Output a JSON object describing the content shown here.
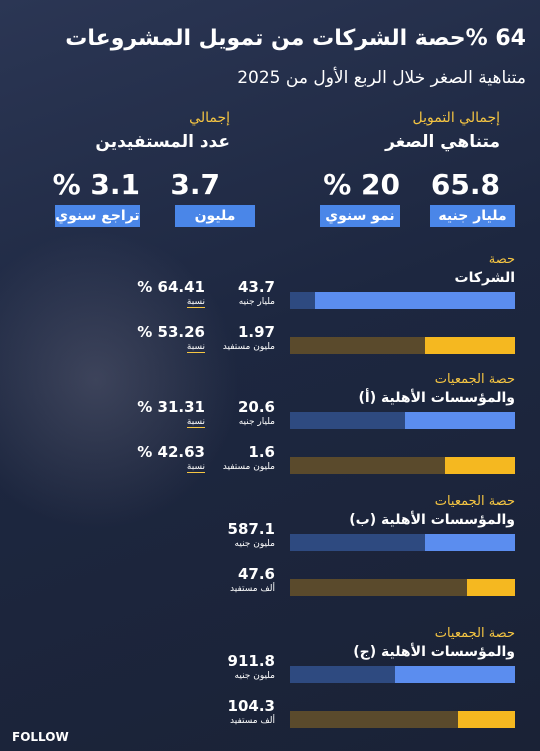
{
  "header": {
    "title_number": "64 %",
    "title": "حصة الشركات من تمويل المشروعات",
    "subtitle": "متناهية الصغر خلال الربع الأول من 2025"
  },
  "summary": [
    {
      "label_top": "إجمالي التمويل",
      "label_main": "متناهي الصغر",
      "items": [
        {
          "value": "65.8",
          "unit": "مليار جنيه"
        },
        {
          "value": "20 %",
          "unit": "نمو سنوي"
        }
      ]
    },
    {
      "label_top": "إجمالي",
      "label_main": "عدد المستفيدين",
      "items": [
        {
          "value": "3.7",
          "unit": "مليون"
        },
        {
          "value": "3.1 %",
          "unit": "تراجع سنوي"
        }
      ]
    }
  ],
  "sections": [
    {
      "label_top": "حصة",
      "label_main": "الشركات",
      "rows": [
        {
          "value": "43.7",
          "unit": "مليار جنيه",
          "share": "64.41 %",
          "share_label": "نسبة"
        },
        {
          "value": "1.97",
          "unit": "مليون مستفيد",
          "share": "53.26 %",
          "share_label": "نسبة"
        }
      ]
    },
    {
      "label_top": "حصة الجمعيات",
      "label_main": "والمؤسسات الأهلية (أ)",
      "rows": [
        {
          "value": "20.6",
          "unit": "مليار جنيه",
          "share": "31.31 %",
          "share_label": "نسبة"
        },
        {
          "value": "1.6",
          "unit": "مليون مستفيد",
          "share": "42.63 %",
          "share_label": "نسبة"
        }
      ]
    },
    {
      "label_top": "حصة الجمعيات",
      "label_main": "والمؤسسات الأهلية (ب)",
      "rows": [
        {
          "value": "587.1",
          "unit": "مليون جنيه"
        },
        {
          "value": "47.6",
          "unit": "ألف مستفيد"
        }
      ]
    },
    {
      "label_top": "حصة الجمعيات",
      "label_main": "والمؤسسات الأهلية (ج)",
      "rows": [
        {
          "value": "911.8",
          "unit": "مليون جنيه"
        },
        {
          "value": "104.3",
          "unit": "ألف مستفيد"
        }
      ]
    }
  ],
  "logo": "FOLLOW"
}
